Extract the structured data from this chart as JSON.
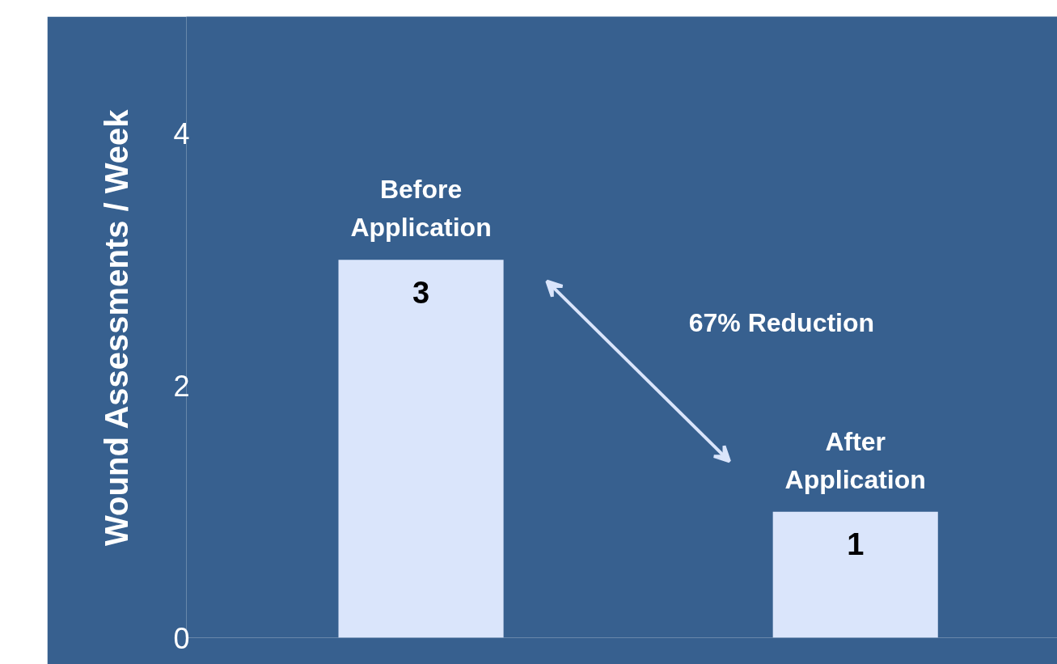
{
  "chart_data": {
    "type": "bar",
    "ylabel": "Wound Assessments / Week",
    "categories": [
      "Before Application",
      "After Application"
    ],
    "values": [
      3,
      1
    ],
    "color": "#dae5fb",
    "ylim": [
      0,
      4.93
    ],
    "yticks": [
      0,
      2,
      4
    ],
    "data_labels": true,
    "annotations": [
      "67% Reduction"
    ]
  }
}
